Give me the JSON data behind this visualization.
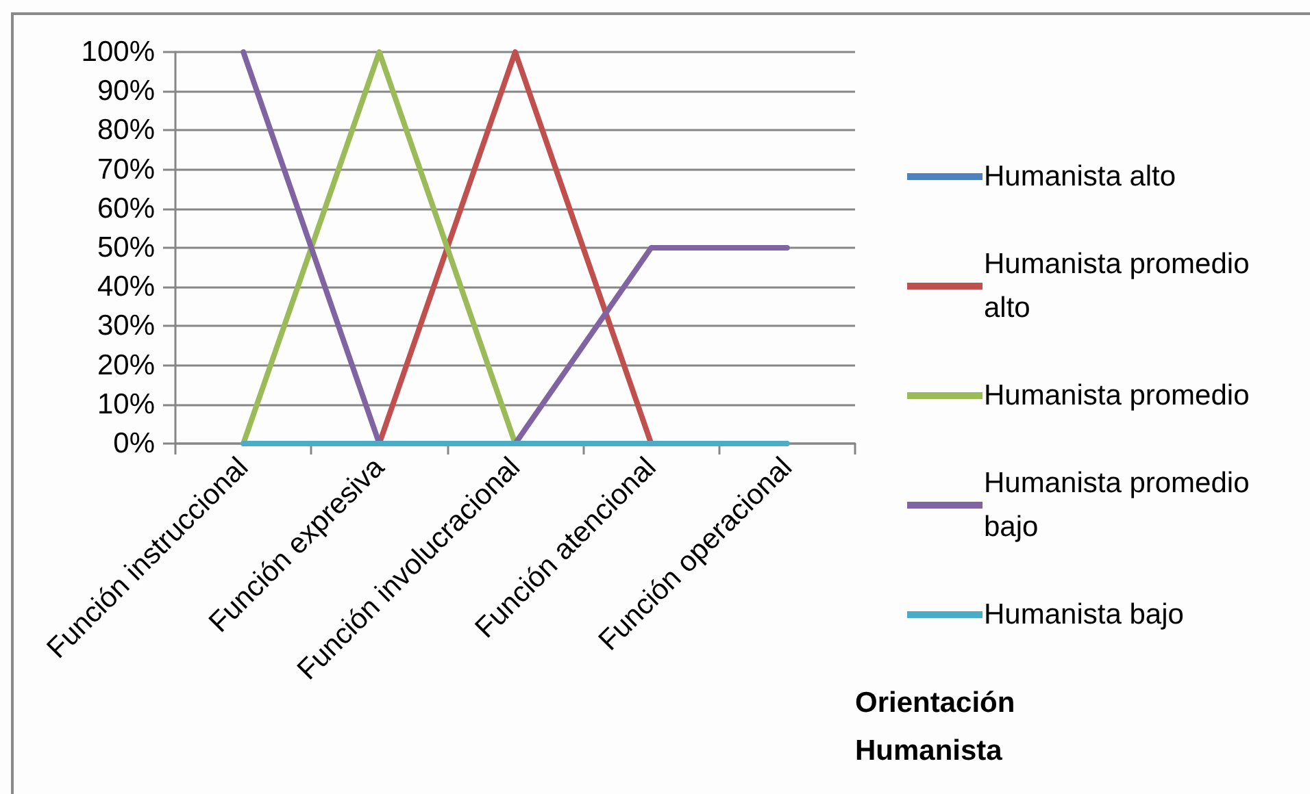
{
  "chart_data": {
    "type": "line",
    "categories": [
      "Función instruccional",
      "Función expresiva",
      "Función involucracional",
      "Función atencional",
      "Función operacional"
    ],
    "series": [
      {
        "name": "Humanista alto",
        "color": "#4f81bd",
        "values": [
          null,
          null,
          null,
          null,
          null
        ]
      },
      {
        "name": "Humanista promedio alto",
        "color": "#c0504d",
        "values": [
          null,
          0,
          100,
          0,
          null
        ]
      },
      {
        "name": "Humanista promedio",
        "color": "#9bbb59",
        "values": [
          0,
          100,
          0,
          null,
          null
        ]
      },
      {
        "name": "Humanista promedio bajo",
        "color": "#8064a2",
        "values": [
          100,
          0,
          0,
          50,
          50
        ]
      },
      {
        "name": "Humanista bajo",
        "color": "#4bacc6",
        "values": [
          0,
          0,
          0,
          0,
          0
        ]
      }
    ],
    "xlabel": "Orientación Humanista",
    "ylim": [
      0,
      100
    ],
    "yticks": [
      {
        "value": 0,
        "label": "0%"
      },
      {
        "value": 10,
        "label": "10%"
      },
      {
        "value": 20,
        "label": "20%"
      },
      {
        "value": 30,
        "label": "30%"
      },
      {
        "value": 40,
        "label": "40%"
      },
      {
        "value": 50,
        "label": "50%"
      },
      {
        "value": 60,
        "label": "60%"
      },
      {
        "value": 70,
        "label": "70%"
      },
      {
        "value": 80,
        "label": "80%"
      },
      {
        "value": 90,
        "label": "90%"
      },
      {
        "value": 100,
        "label": "100%"
      }
    ],
    "grid": "y",
    "legend": "right",
    "marker": "none",
    "line_style": "solid"
  }
}
